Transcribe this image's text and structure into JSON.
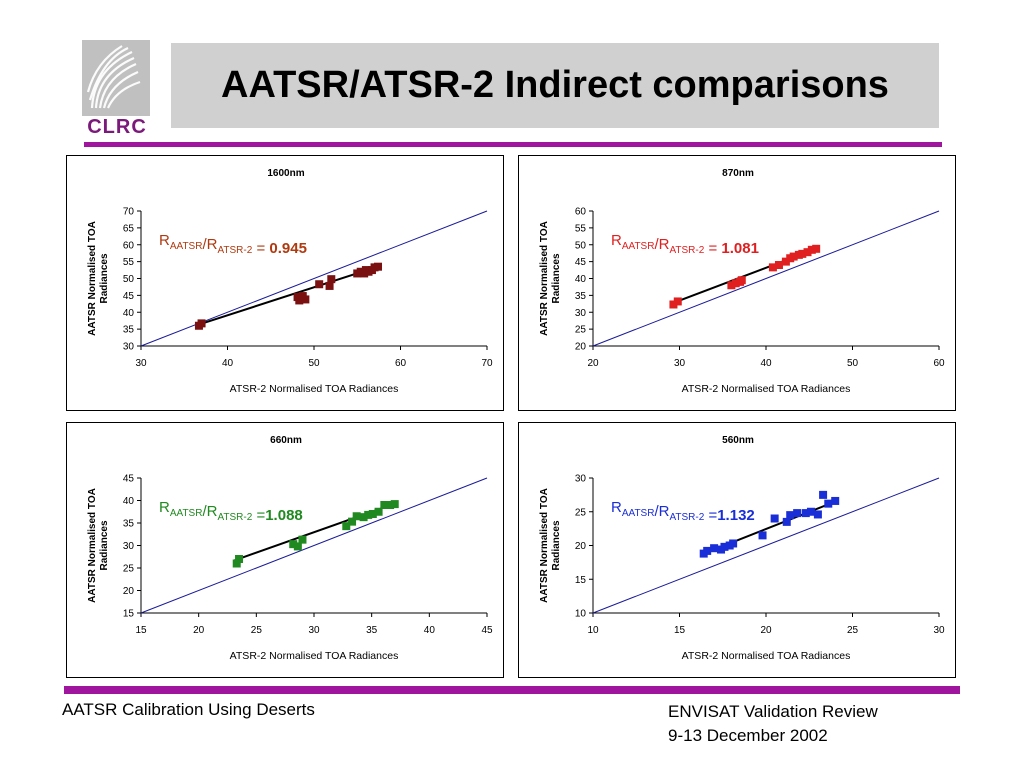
{
  "logo": {
    "text": "CLRC"
  },
  "header": {
    "title": "AATSR/ATSR-2 Indirect comparisons"
  },
  "footer": {
    "left": "AATSR Calibration Using Deserts",
    "right_line1": "ENVISAT Validation Review",
    "right_line2": "9-13 December 2002"
  },
  "colors": {
    "accent": "#a0159e",
    "line": "#1a1a9a"
  },
  "chart_data": [
    {
      "type": "scatter",
      "title": "1600nm",
      "xlabel": "ATSR-2 Normalised TOA Radiances",
      "ylabel_line1": "AATSR Normalised TOA",
      "ylabel_line2": "Radiances",
      "xlim": [
        30,
        70
      ],
      "ylim": [
        30,
        70
      ],
      "xticks": [
        30,
        40,
        50,
        60,
        70
      ],
      "yticks": [
        30,
        35,
        40,
        45,
        50,
        55,
        60,
        65,
        70
      ],
      "marker_color": "#7a1010",
      "ratio": {
        "prefix": "R",
        "sub1": "AATSR",
        "mid": "/R",
        "sub2": "ATSR-2",
        "eq": " = ",
        "value": "0.945",
        "color": "#b03a10"
      },
      "x": [
        36.7,
        37.0,
        48.1,
        48.3,
        48.7,
        49.0,
        50.6,
        51.8,
        52.0,
        55.0,
        55.4,
        55.8,
        56.0,
        56.3,
        56.7,
        57.0,
        57.4
      ],
      "y": [
        36.0,
        36.7,
        44.5,
        43.5,
        44.8,
        43.8,
        48.3,
        47.8,
        49.8,
        51.5,
        52.0,
        51.5,
        52.5,
        52.0,
        52.5,
        53.3,
        53.5
      ],
      "fit": [
        [
          36.5,
          36.2
        ],
        [
          57.5,
          53.6
        ]
      ]
    },
    {
      "type": "scatter",
      "title": "870nm",
      "xlabel": "ATSR-2 Normalised TOA Radiances",
      "ylabel_line1": "AATSR Normalised TOA",
      "ylabel_line2": "Radiances",
      "xlim": [
        20,
        60
      ],
      "ylim": [
        20,
        60
      ],
      "xticks": [
        20,
        30,
        40,
        50,
        60
      ],
      "yticks": [
        20,
        25,
        30,
        35,
        40,
        45,
        50,
        55,
        60
      ],
      "marker_color": "#e02020",
      "ratio": {
        "prefix": "R",
        "sub1": "AATSR",
        "mid": "/R",
        "sub2": "ATSR-2",
        "eq": " = ",
        "value": "1.081",
        "color": "#e02020"
      },
      "x": [
        29.3,
        29.8,
        36.0,
        36.5,
        37.0,
        37.2,
        40.8,
        41.5,
        42.3,
        42.8,
        43.2,
        43.8,
        44.2,
        44.8,
        45.3,
        45.8
      ],
      "y": [
        32.3,
        33.2,
        38.0,
        38.6,
        39.0,
        39.5,
        43.3,
        44.0,
        45.0,
        46.0,
        46.5,
        47.0,
        47.3,
        47.8,
        48.5,
        48.8
      ],
      "fit": [
        [
          29.0,
          32.5
        ],
        [
          46.0,
          49.0
        ]
      ]
    },
    {
      "type": "scatter",
      "title": "660nm",
      "xlabel": "ATSR-2 Normalised TOA Radiances",
      "ylabel_line1": "AATSR Normalised TOA",
      "ylabel_line2": "Radiances",
      "xlim": [
        15,
        45
      ],
      "ylim": [
        15,
        45
      ],
      "xticks": [
        15,
        20,
        25,
        30,
        35,
        40,
        45
      ],
      "yticks": [
        15,
        20,
        25,
        30,
        35,
        40,
        45
      ],
      "marker_color": "#208a20",
      "ratio": {
        "prefix": "R",
        "sub1": "AATSR",
        "mid": "/R",
        "sub2": "ATSR-2",
        "eq": " =",
        "value": "1.088",
        "color": "#208a20"
      },
      "x": [
        23.3,
        23.5,
        28.2,
        28.6,
        29.0,
        32.8,
        33.3,
        33.7,
        34.3,
        34.7,
        35.1,
        35.6,
        36.1,
        36.6,
        37.0
      ],
      "y": [
        26.0,
        27.0,
        30.3,
        29.8,
        31.3,
        34.3,
        35.3,
        36.5,
        36.3,
        36.8,
        37.0,
        37.5,
        39.0,
        39.0,
        39.2
      ],
      "fit": [
        [
          23.0,
          26.6
        ],
        [
          37.0,
          39.3
        ]
      ]
    },
    {
      "type": "scatter",
      "title": "560nm",
      "xlabel": "ATSR-2 Normalised TOA Radiances",
      "ylabel_line1": "AATSR Normalised TOA",
      "ylabel_line2": "Radiances",
      "xlim": [
        10,
        30
      ],
      "ylim": [
        10,
        30
      ],
      "xticks": [
        10,
        15,
        20,
        25,
        30
      ],
      "yticks": [
        10,
        15,
        20,
        25,
        30
      ],
      "marker_color": "#1a2ed8",
      "ratio": {
        "prefix": "R",
        "sub1": "AATSR",
        "mid": "/R",
        "sub2": "ATSR-2",
        "eq": " =",
        "value": "1.132",
        "color": "#1a2ed8"
      },
      "x": [
        16.4,
        16.6,
        17.0,
        17.4,
        17.6,
        17.9,
        18.1,
        19.8,
        20.5,
        21.2,
        21.4,
        21.8,
        22.3,
        22.6,
        23.0,
        23.3,
        23.6,
        24.0
      ],
      "y": [
        18.8,
        19.2,
        19.6,
        19.4,
        19.8,
        20.0,
        20.3,
        21.5,
        24.0,
        23.5,
        24.5,
        24.8,
        24.8,
        25.0,
        24.6,
        27.5,
        26.2,
        26.6
      ],
      "fit": [
        [
          16.3,
          18.7
        ],
        [
          24.0,
          26.5
        ]
      ]
    }
  ]
}
